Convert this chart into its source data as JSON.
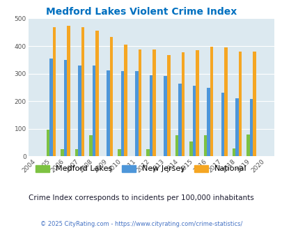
{
  "title": "Medford Lakes Violent Crime Index",
  "years": [
    "2004",
    "2005",
    "2006",
    "2007",
    "2008",
    "2009",
    "2010",
    "2011",
    "2012",
    "2013",
    "2014",
    "2015",
    "2016",
    "2017",
    "2018",
    "2019",
    "2020"
  ],
  "medford_lakes": [
    0,
    97,
    27,
    27,
    77,
    0,
    27,
    0,
    27,
    0,
    77,
    53,
    77,
    0,
    30,
    80,
    0
  ],
  "new_jersey": [
    0,
    355,
    350,
    330,
    330,
    312,
    310,
    310,
    294,
    291,
    263,
    257,
    248,
    232,
    211,
    207,
    0
  ],
  "national": [
    0,
    469,
    474,
    467,
    455,
    432,
    405,
    387,
    387,
    368,
    378,
    384,
    398,
    394,
    380,
    379,
    0
  ],
  "medford_color": "#7dc242",
  "nj_color": "#4d96d9",
  "national_color": "#f5a623",
  "bg_color": "#dce9f0",
  "title_color": "#0070c0",
  "subtitle": "Crime Index corresponds to incidents per 100,000 inhabitants",
  "footer": "© 2025 CityRating.com - https://www.cityrating.com/crime-statistics/",
  "ylim": [
    0,
    500
  ],
  "yticks": [
    0,
    100,
    200,
    300,
    400,
    500
  ]
}
